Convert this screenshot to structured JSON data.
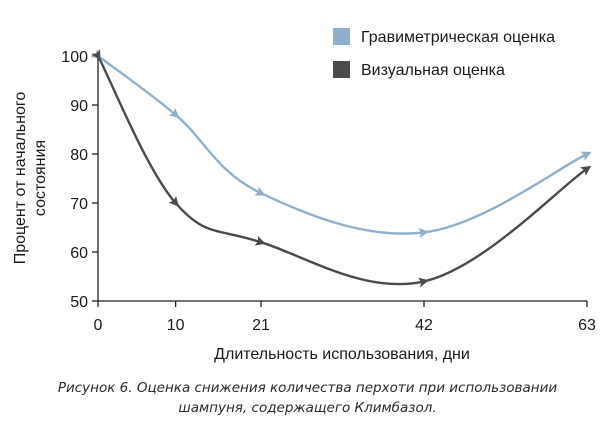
{
  "chart_data": {
    "type": "line",
    "x": [
      0,
      10,
      21,
      42,
      63
    ],
    "x_ticks": [
      "0",
      "10",
      "21",
      "42",
      "63"
    ],
    "xlabel": "Длительность использования, дни",
    "ylabel_lines": [
      "Процент от начального",
      "состояния"
    ],
    "ylim": [
      50,
      100
    ],
    "y_ticks": [
      50,
      60,
      70,
      80,
      90,
      100
    ],
    "legend_position": "top-right",
    "series": [
      {
        "name": "Гравиметрическая оценка",
        "color": "#8fb0cc",
        "values": [
          100,
          88,
          72,
          64,
          80
        ]
      },
      {
        "name": "Визуальная оценка",
        "color": "#4a4a4a",
        "values": [
          100,
          70,
          62,
          54,
          77
        ]
      }
    ]
  },
  "caption": {
    "line1": "Рисунок 6. Оценка снижения количества перхоти при использовании",
    "line2": "шампуня, содержащего Климбазол."
  }
}
